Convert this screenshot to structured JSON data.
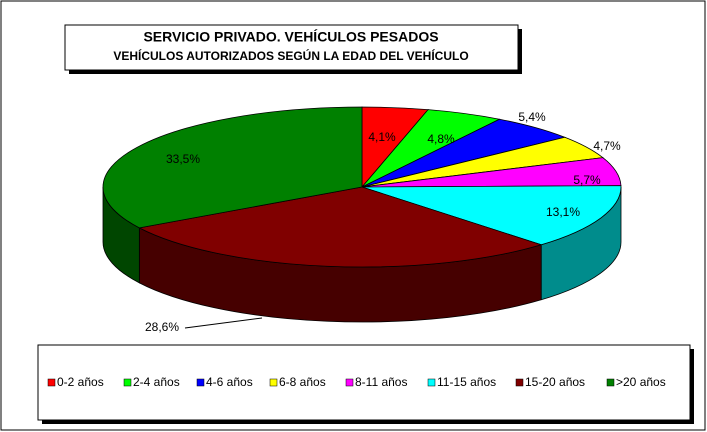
{
  "chart_data": {
    "type": "pie3d",
    "title": "SERVICIO PRIVADO. VEHÍCULOS PESADOS",
    "subtitle": "VEHÍCULOS AUTORIZADOS  SEGÚN LA EDAD DEL VEHÍCULO",
    "categories": [
      "0-2 años",
      "2-4 años",
      "4-6 años",
      "6-8 años",
      "8-11 años",
      "11-15 años",
      "15-20 años",
      ">20 años"
    ],
    "values": [
      4.1,
      4.8,
      5.4,
      4.7,
      5.7,
      13.1,
      28.6,
      33.5
    ],
    "value_labels": [
      "4,1%",
      "4,8%",
      "5,4%",
      "4,7%",
      "5,7%",
      "13,1%",
      "28,6%",
      "33,5%"
    ],
    "colors": [
      "#ff0000",
      "#00ff00",
      "#0000ff",
      "#ffff00",
      "#ff00ff",
      "#00ffff",
      "#800000",
      "#008000"
    ],
    "legend": "bottom"
  }
}
